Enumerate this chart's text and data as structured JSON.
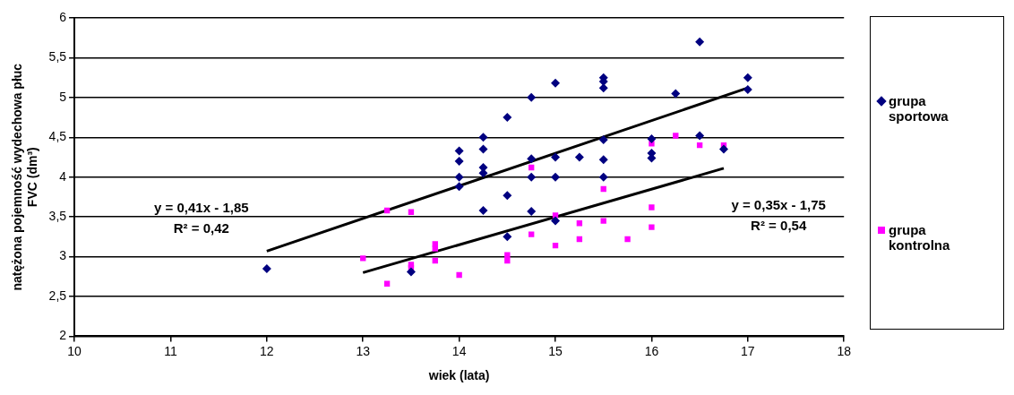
{
  "chart_data": {
    "type": "scatter",
    "xlabel": "wiek (lata)",
    "ylabel": "natężona pojemność wydechowa płuc\nFVC (dm³)",
    "xlim": [
      10,
      18
    ],
    "xticks": [
      10,
      11,
      12,
      13,
      14,
      15,
      16,
      17,
      18
    ],
    "ylim": [
      2,
      6
    ],
    "yticks": [
      2,
      {
        "value": 2.5,
        "label": "2,5"
      },
      3,
      {
        "value": 3.5,
        "label": "3,5"
      },
      4,
      {
        "value": 4.5,
        "label": "4,5"
      },
      5,
      {
        "value": 5.5,
        "label": "5,5"
      },
      6
    ],
    "grid": "y",
    "legend": "right",
    "annotations": [
      "y = 0,41x - 1,85",
      "R² = 0,42",
      "y = 0,35x - 1,75",
      "R² = 0,54"
    ],
    "series": [
      {
        "name": "grupa sportowa",
        "color": "#000080",
        "marker": "diamond",
        "x": [
          12,
          13.5,
          14,
          14,
          14,
          14,
          14.25,
          14.25,
          14.25,
          14.25,
          14.25,
          14.5,
          14.5,
          14.5,
          14.75,
          14.75,
          14.75,
          14.75,
          15,
          15,
          15,
          15,
          15.25,
          15.5,
          15.5,
          15.5,
          15.5,
          15.5,
          15.5,
          16,
          16,
          16,
          16.25,
          16.5,
          16.5,
          16.75,
          17,
          17
        ],
        "values": [
          2.85,
          2.81,
          4.33,
          4.2,
          4.0,
          3.88,
          4.5,
          4.35,
          4.12,
          4.05,
          3.58,
          4.75,
          3.77,
          3.25,
          5.0,
          4.23,
          4.0,
          3.57,
          5.18,
          4.25,
          4.0,
          3.45,
          4.25,
          5.25,
          5.2,
          5.12,
          4.47,
          4.22,
          4.0,
          4.48,
          4.3,
          4.24,
          5.05,
          5.7,
          4.52,
          4.35,
          5.25,
          5.1
        ]
      },
      {
        "name": "grupa kontrolna",
        "color": "#ff00ff",
        "marker": "square",
        "x": [
          13,
          13.25,
          13.25,
          13.5,
          13.5,
          13.5,
          13.75,
          13.75,
          13.75,
          14,
          14.5,
          14.5,
          14.75,
          14.75,
          15,
          15,
          15.25,
          15.25,
          15.5,
          15.5,
          15.75,
          16,
          16,
          16,
          16.25,
          16.5,
          16.75
        ],
        "values": [
          2.98,
          3.58,
          2.66,
          3.56,
          2.9,
          2.86,
          3.16,
          3.1,
          2.95,
          2.77,
          3.02,
          2.95,
          4.12,
          3.28,
          3.52,
          3.14,
          3.42,
          3.22,
          3.85,
          3.45,
          3.22,
          4.42,
          3.62,
          3.37,
          4.52,
          4.4,
          4.4
        ]
      },
      {
        "type": "line",
        "color": "#000000",
        "marker": "none",
        "x": [
          12,
          17
        ],
        "values": [
          3.07,
          5.12
        ]
      },
      {
        "type": "line",
        "color": "#000000",
        "marker": "none",
        "x": [
          13,
          16.75
        ],
        "values": [
          2.8,
          4.11
        ]
      }
    ]
  }
}
